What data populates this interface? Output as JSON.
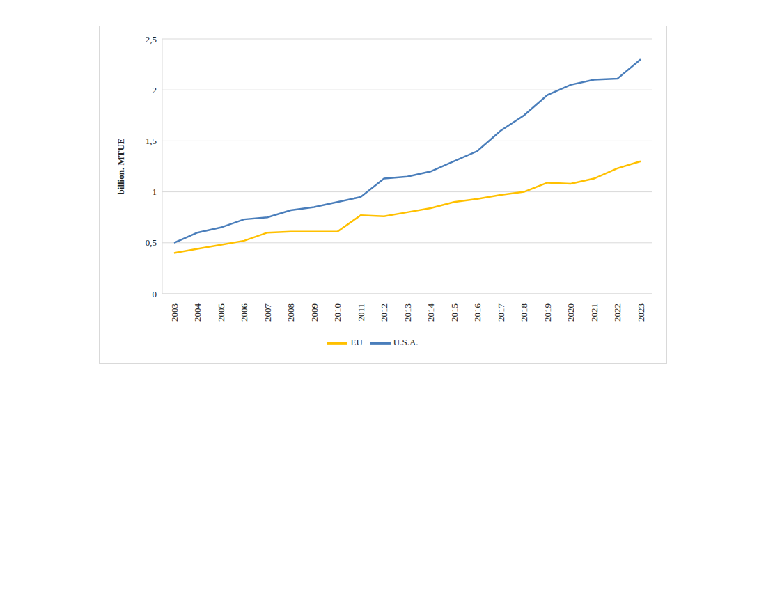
{
  "chart_data": {
    "type": "line",
    "y_label": "billion. MTUE",
    "categories": [
      "2003",
      "2004",
      "2005",
      "2006",
      "2007",
      "2008",
      "2009",
      "2010",
      "2011",
      "2012",
      "2013",
      "2014",
      "2015",
      "2016",
      "2017",
      "2018",
      "2019",
      "2020",
      "2021",
      "2022",
      "2023"
    ],
    "series": [
      {
        "name": "U.S.A.",
        "color": "#4a7ebb",
        "values": [
          0.5,
          0.6,
          0.65,
          0.73,
          0.75,
          0.82,
          0.85,
          0.9,
          0.95,
          1.13,
          1.15,
          1.2,
          1.3,
          1.4,
          1.6,
          1.75,
          1.95,
          2.05,
          2.1,
          2.11,
          2.3
        ]
      },
      {
        "name": "EU",
        "color": "#ffc000",
        "values": [
          0.4,
          0.44,
          0.48,
          0.52,
          0.6,
          0.61,
          0.61,
          0.61,
          0.77,
          0.76,
          0.8,
          0.84,
          0.9,
          0.93,
          0.97,
          1.0,
          1.09,
          1.08,
          1.13,
          1.23,
          1.3
        ]
      }
    ],
    "ylim": [
      0,
      2.5
    ],
    "yticks": [
      0,
      {
        "value": 0.5,
        "label": "0,5"
      },
      1,
      {
        "value": 1.5,
        "label": "1,5"
      },
      2,
      {
        "value": 2.5,
        "label": "2,5"
      }
    ],
    "grid": true,
    "legend": "bottom"
  }
}
